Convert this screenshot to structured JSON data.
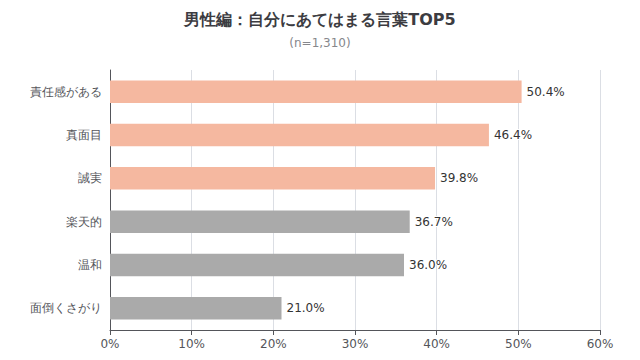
{
  "chart_data": {
    "type": "bar",
    "title": "男性編：自分にあてはまる言葉TOP5",
    "subtitle": "(n=1,310)",
    "orientation": "horizontal",
    "categories": [
      "責任感がある",
      "真面目",
      "誠実",
      "楽天的",
      "温和",
      "面倒くさがり"
    ],
    "values": [
      50.4,
      46.4,
      39.8,
      36.7,
      36.0,
      21.0
    ],
    "value_labels": [
      "50.4%",
      "46.4%",
      "39.8%",
      "36.7%",
      "36.0%",
      "21.0%"
    ],
    "data_labels": true,
    "colors": [
      "#F5B8A0",
      "#F5B8A0",
      "#F5B8A0",
      "#AAAAAA",
      "#AAAAAA",
      "#AAAAAA"
    ],
    "xlim": [
      0,
      60
    ],
    "xticks": [
      {
        "value": 0,
        "label": "0%"
      },
      {
        "value": 10,
        "label": "10%"
      },
      {
        "value": 20,
        "label": "20%"
      },
      {
        "value": 30,
        "label": "30%"
      },
      {
        "value": 40,
        "label": "40%"
      },
      {
        "value": 50,
        "label": "50%"
      },
      {
        "value": 60,
        "label": "60%"
      }
    ],
    "grid": true
  }
}
